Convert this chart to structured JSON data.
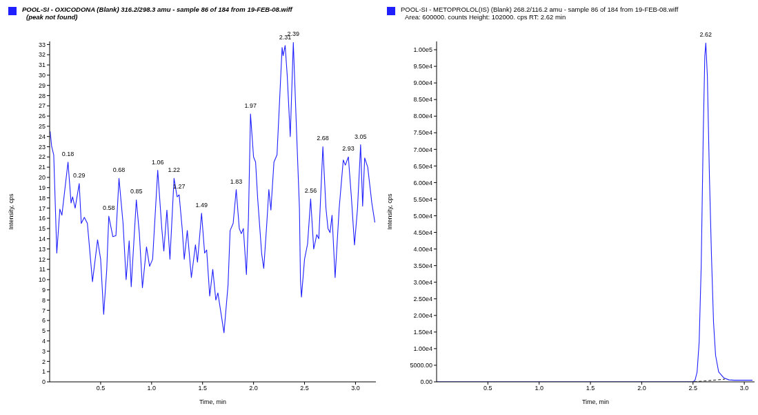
{
  "chart_data": [
    {
      "type": "line",
      "title": "POOL-SI - OXICODONA (Blank) 316.2/298.3 amu - sample 86 of 184 from 19-FEB-08.wiff",
      "subtitle": "(peak not found)",
      "xlabel": "Time, min",
      "ylabel": "Intensity, cps",
      "xlim": [
        0,
        3.2
      ],
      "ylim": [
        0,
        33.3
      ],
      "xticks": [
        {
          "value": 0.5,
          "label": "0.5"
        },
        {
          "value": 1,
          "label": "1.0"
        },
        {
          "value": 1.5,
          "label": "1.5"
        },
        {
          "value": 2,
          "label": "2.0"
        },
        {
          "value": 2.5,
          "label": "2.5"
        },
        {
          "value": 3,
          "label": "3.0"
        }
      ],
      "yticks": [
        0,
        1,
        2,
        3,
        4,
        5,
        6,
        7,
        8,
        9,
        10,
        11,
        12,
        13,
        14,
        15,
        16,
        17,
        18,
        19,
        20,
        21,
        22,
        23,
        24,
        25,
        26,
        27,
        28,
        29,
        30,
        31,
        32,
        33
      ],
      "grid": false,
      "series": [
        {
          "color": "#1f1fff",
          "x": [
            0.005,
            0.02,
            0.04,
            0.07,
            0.1,
            0.12,
            0.18,
            0.21,
            0.225,
            0.25,
            0.29,
            0.31,
            0.34,
            0.37,
            0.42,
            0.47,
            0.5,
            0.53,
            0.56,
            0.58,
            0.62,
            0.65,
            0.68,
            0.72,
            0.75,
            0.78,
            0.8,
            0.85,
            0.88,
            0.91,
            0.95,
            0.98,
            1.01,
            1.06,
            1.1,
            1.12,
            1.15,
            1.18,
            1.22,
            1.25,
            1.27,
            1.3,
            1.32,
            1.35,
            1.39,
            1.43,
            1.45,
            1.49,
            1.52,
            1.54,
            1.57,
            1.6,
            1.63,
            1.65,
            1.71,
            1.75,
            1.77,
            1.8,
            1.83,
            1.86,
            1.88,
            1.9,
            1.93,
            1.95,
            1.97,
            2,
            2.02,
            2.04,
            2.08,
            2.1,
            2.13,
            2.15,
            2.17,
            2.2,
            2.23,
            2.28,
            2.29,
            2.31,
            2.33,
            2.36,
            2.39,
            2.42,
            2.45,
            2.46,
            2.47,
            2.5,
            2.53,
            2.56,
            2.59,
            2.62,
            2.64,
            2.68,
            2.71,
            2.73,
            2.75,
            2.77,
            2.8,
            2.84,
            2.88,
            2.9,
            2.93,
            2.96,
            2.99,
            3.02,
            3.05,
            3.07,
            3.09,
            3.12,
            3.16,
            3.19
          ],
          "values": [
            24.5,
            23,
            22.2,
            12.6,
            16.9,
            16.3,
            21.5,
            17.5,
            18.1,
            17,
            19.4,
            15.5,
            16.1,
            15.5,
            9.8,
            13.9,
            12,
            6.6,
            11,
            16.2,
            14.2,
            14.3,
            19.9,
            15.5,
            10,
            13.8,
            9.3,
            17.8,
            14.5,
            9.2,
            13.2,
            11.3,
            12,
            20.7,
            15,
            12.8,
            16.8,
            12,
            19.9,
            18.1,
            18.3,
            15,
            12,
            14.8,
            10.2,
            13.4,
            11.7,
            16.5,
            12.6,
            12.9,
            8.4,
            11,
            8,
            8.7,
            4.8,
            9.5,
            14.8,
            15.5,
            18.8,
            15,
            14.5,
            15,
            10.5,
            16,
            26.2,
            22,
            21.5,
            18,
            12.5,
            11.1,
            15.5,
            18.8,
            16.8,
            21.5,
            22.2,
            32.7,
            31.9,
            32.9,
            30,
            24,
            33.2,
            25,
            17,
            10,
            8.3,
            12,
            13.5,
            17.9,
            13,
            14.4,
            14,
            23,
            17,
            15,
            14.6,
            16.3,
            10.2,
            17,
            21.7,
            21.2,
            22,
            18,
            13.4,
            17,
            23.2,
            17.2,
            21.9,
            21,
            17.5,
            15.6
          ]
        }
      ],
      "annotations": [
        {
          "text": "0.18",
          "x": 0.18,
          "y": 21.5
        },
        {
          "text": "0.29",
          "x": 0.29,
          "y": 19.4
        },
        {
          "text": "0.58",
          "x": 0.58,
          "y": 16.2
        },
        {
          "text": "0.68",
          "x": 0.68,
          "y": 19.9
        },
        {
          "text": "0.85",
          "x": 0.85,
          "y": 17.8
        },
        {
          "text": "1.06",
          "x": 1.06,
          "y": 20.7
        },
        {
          "text": "1.22",
          "x": 1.22,
          "y": 19.9
        },
        {
          "text": "1.27",
          "x": 1.27,
          "y": 18.3
        },
        {
          "text": "1.49",
          "x": 1.49,
          "y": 16.5
        },
        {
          "text": "1.83",
          "x": 1.83,
          "y": 18.8
        },
        {
          "text": "1.97",
          "x": 1.97,
          "y": 26.2
        },
        {
          "text": "2.31",
          "x": 2.31,
          "y": 32.9
        },
        {
          "text": "2.39",
          "x": 2.39,
          "y": 33.2
        },
        {
          "text": "2.56",
          "x": 2.56,
          "y": 17.9
        },
        {
          "text": "2.68",
          "x": 2.68,
          "y": 23
        },
        {
          "text": "2.93",
          "x": 2.93,
          "y": 22
        },
        {
          "text": "3.05",
          "x": 3.05,
          "y": 23.2
        }
      ]
    },
    {
      "type": "line",
      "title": "POOL-SI - METOPROLOL(IS) (Blank) 268.2/116.2 amu - sample 86 of 184 from 19-FEB-08.wiff",
      "subtitle": "Area: 600000. counts  Height: 102000. cps  RT: 2.62 min",
      "xlabel": "Time, min",
      "ylabel": "Intensity, cps",
      "xlim": [
        0,
        3.1
      ],
      "ylim": [
        0,
        102500
      ],
      "xticks": [
        {
          "value": 0.5,
          "label": "0.5"
        },
        {
          "value": 1,
          "label": "1.0"
        },
        {
          "value": 1.5,
          "label": "1.5"
        },
        {
          "value": 2,
          "label": "2.0"
        },
        {
          "value": 2.5,
          "label": "2.5"
        },
        {
          "value": 3,
          "label": "3.0"
        }
      ],
      "yticks": [
        {
          "value": 0,
          "label": "0.00"
        },
        {
          "value": 5000,
          "label": "5000.00"
        },
        {
          "value": 10000,
          "label": "1.00e4"
        },
        {
          "value": 15000,
          "label": "1.50e4"
        },
        {
          "value": 20000,
          "label": "2.00e4"
        },
        {
          "value": 25000,
          "label": "2.50e4"
        },
        {
          "value": 30000,
          "label": "3.00e4"
        },
        {
          "value": 35000,
          "label": "3.50e4"
        },
        {
          "value": 40000,
          "label": "4.00e4"
        },
        {
          "value": 45000,
          "label": "4.50e4"
        },
        {
          "value": 50000,
          "label": "5.00e4"
        },
        {
          "value": 55000,
          "label": "5.50e4"
        },
        {
          "value": 60000,
          "label": "6.00e4"
        },
        {
          "value": 65000,
          "label": "6.50e4"
        },
        {
          "value": 70000,
          "label": "7.00e4"
        },
        {
          "value": 75000,
          "label": "7.50e4"
        },
        {
          "value": 80000,
          "label": "8.00e4"
        },
        {
          "value": 85000,
          "label": "8.50e4"
        },
        {
          "value": 90000,
          "label": "9.00e4"
        },
        {
          "value": 95000,
          "label": "9.50e4"
        },
        {
          "value": 100000,
          "label": "1.00e5"
        }
      ],
      "grid": false,
      "series": [
        {
          "color": "#1f1fff",
          "x": [
            0,
            2.5,
            2.52,
            2.54,
            2.56,
            2.58,
            2.6,
            2.615,
            2.625,
            2.64,
            2.66,
            2.68,
            2.7,
            2.72,
            2.75,
            2.8,
            2.85,
            2.9,
            3.08
          ],
          "values": [
            0,
            0,
            500,
            3000,
            12000,
            35000,
            75000,
            98000,
            102000,
            92000,
            62000,
            38000,
            18000,
            8000,
            3000,
            1200,
            600,
            500,
            500
          ]
        },
        {
          "type": "line",
          "color": "#333333",
          "line_style": "dashed",
          "x": [
            2.51,
            2.81
          ],
          "values": [
            0,
            800
          ]
        }
      ],
      "annotations": [
        {
          "text": "2.62",
          "x": 2.625,
          "y": 102000
        }
      ]
    }
  ]
}
